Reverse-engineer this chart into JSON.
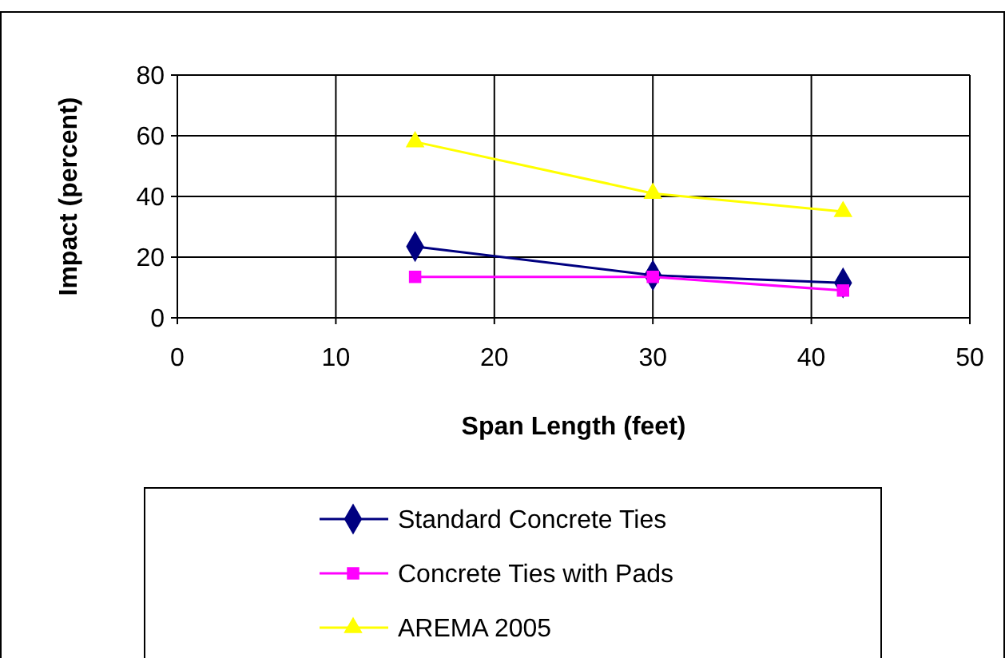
{
  "chart_data": {
    "type": "line",
    "xlabel": "Span Length (feet)",
    "ylabel": "Impact (percent)",
    "xlim": [
      0,
      50
    ],
    "xticks": [
      0,
      10,
      20,
      30,
      40,
      50
    ],
    "ylim": [
      0,
      80
    ],
    "yticks": [
      0,
      20,
      40,
      60,
      80
    ],
    "grid": true,
    "legend": "bottom",
    "series": [
      {
        "name": "Standard Concrete Ties",
        "color": "#000080",
        "marker": "diamond",
        "x": [
          15,
          30,
          42
        ],
        "values": [
          23.5,
          14,
          11.5
        ]
      },
      {
        "name": "Concrete Ties with Pads",
        "color": "#ff00ff",
        "marker": "square",
        "x": [
          15,
          30,
          42
        ],
        "values": [
          13.5,
          13.5,
          9
        ]
      },
      {
        "name": "AREMA 2005",
        "color": "#ffff00",
        "marker": "triangle",
        "x": [
          15,
          30,
          42
        ],
        "values": [
          58,
          41,
          35
        ]
      }
    ]
  }
}
